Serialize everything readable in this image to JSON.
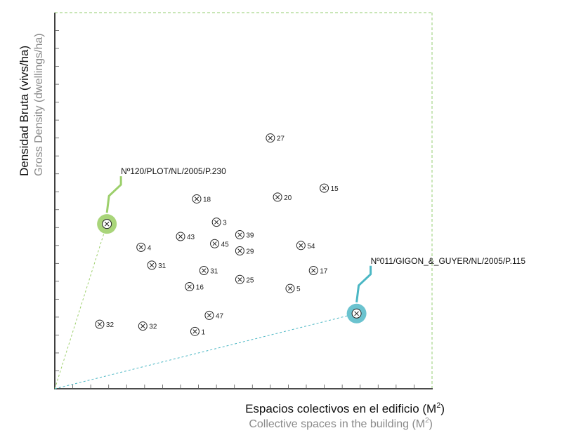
{
  "chart_data": {
    "type": "scatter",
    "ylabel": "Densidad Bruta (vivs/ha)",
    "ylabel_secondary": "Gross Density (dwellings/ha)",
    "xlabel": "Espacios colectivos en el edificio (M",
    "xlabel_secondary": "Collective spaces in the building (M",
    "unit_superscript": "2",
    "unit_close": ")",
    "xlim": [
      0,
      21
    ],
    "ylim": [
      0,
      21
    ],
    "points": [
      {
        "label": "27",
        "x": 12.0,
        "y": 14.0
      },
      {
        "label": "15",
        "x": 15.0,
        "y": 11.2
      },
      {
        "label": "20",
        "x": 12.4,
        "y": 10.7
      },
      {
        "label": "18",
        "x": 7.9,
        "y": 10.6
      },
      {
        "label": "3",
        "x": 9.0,
        "y": 9.3
      },
      {
        "label": "39",
        "x": 10.3,
        "y": 8.6
      },
      {
        "label": "43",
        "x": 7.0,
        "y": 8.5
      },
      {
        "label": "45",
        "x": 8.9,
        "y": 8.1
      },
      {
        "label": "4",
        "x": 4.8,
        "y": 7.9
      },
      {
        "label": "29",
        "x": 10.3,
        "y": 7.7
      },
      {
        "label": "54",
        "x": 13.7,
        "y": 8.0
      },
      {
        "label": "31",
        "x": 5.4,
        "y": 6.9
      },
      {
        "label": "31",
        "x": 8.3,
        "y": 6.6
      },
      {
        "label": "17",
        "x": 14.4,
        "y": 6.6
      },
      {
        "label": "25",
        "x": 10.3,
        "y": 6.1
      },
      {
        "label": "16",
        "x": 7.5,
        "y": 5.7
      },
      {
        "label": "5",
        "x": 13.1,
        "y": 5.6
      },
      {
        "label": "47",
        "x": 8.6,
        "y": 4.1
      },
      {
        "label": "32",
        "x": 2.5,
        "y": 3.6
      },
      {
        "label": "32",
        "x": 4.9,
        "y": 3.5
      },
      {
        "label": "1",
        "x": 7.8,
        "y": 3.2
      }
    ],
    "highlighted": [
      {
        "label": "Nº120/PLOT/NL/2005/P.230",
        "x": 2.9,
        "y": 9.2,
        "color": "#9ccf6b",
        "ring": "#a9d57a"
      },
      {
        "label": "Nº011/GIGON_&_GUYER/NL/2005/P.115",
        "x": 16.8,
        "y": 4.2,
        "color": "#4bb7c4",
        "ring": "#6bc3cf"
      }
    ],
    "frame_color": "#a6d68a",
    "axis_color": "#111111",
    "grid": false,
    "tick_count": 21
  }
}
